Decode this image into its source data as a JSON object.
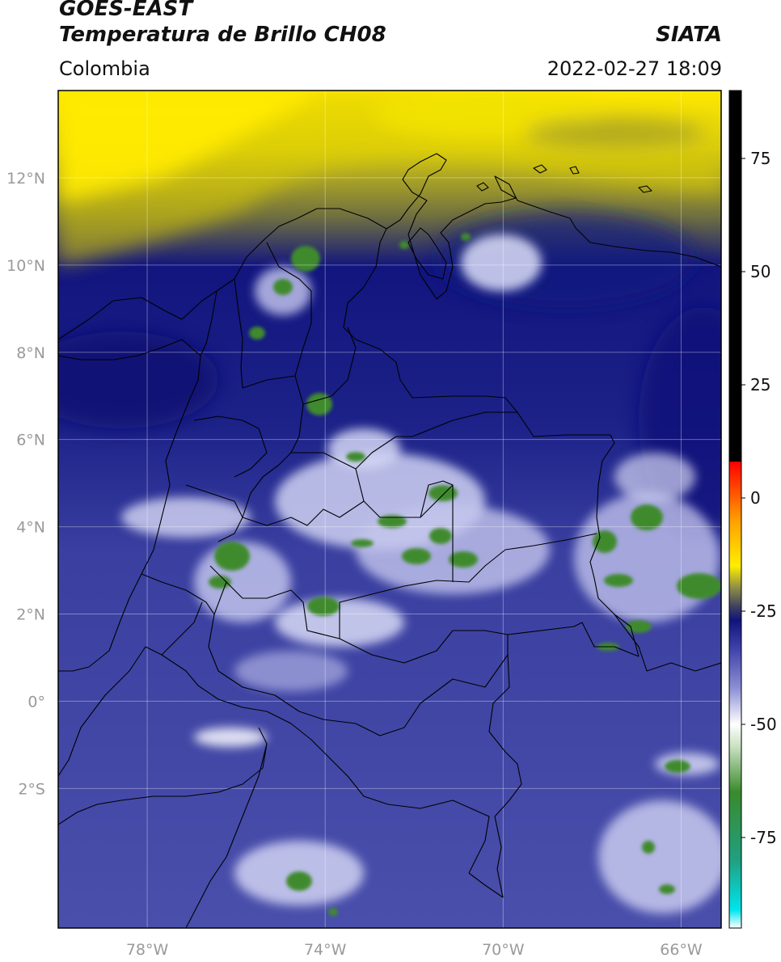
{
  "header": {
    "satellite": "GOES-EAST",
    "product": "Temperatura de Brillo CH08",
    "region": "Colombia",
    "source": "SIATA",
    "datetime": "2022-02-27 18:09"
  },
  "map": {
    "lon_range": [
      -80,
      -65.1
    ],
    "lat_range": [
      -5.2,
      14.0
    ],
    "lon_ticks": [
      {
        "value": -78,
        "label": "78°W"
      },
      {
        "value": -74,
        "label": "74°W"
      },
      {
        "value": -70,
        "label": "70°W"
      },
      {
        "value": -66,
        "label": "66°W"
      }
    ],
    "lat_ticks": [
      {
        "value": 12,
        "label": "12°N"
      },
      {
        "value": 10,
        "label": "10°N"
      },
      {
        "value": 8,
        "label": "8°N"
      },
      {
        "value": 6,
        "label": "6°N"
      },
      {
        "value": 4,
        "label": "4°N"
      },
      {
        "value": 2,
        "label": "2°N"
      },
      {
        "value": 0,
        "label": "0°"
      },
      {
        "value": -2,
        "label": "2°S"
      }
    ],
    "grid": true
  },
  "colorbar": {
    "range": [
      -95,
      90
    ],
    "ticks": [
      {
        "value": 75,
        "label": "75"
      },
      {
        "value": 50,
        "label": "50"
      },
      {
        "value": 25,
        "label": "25"
      },
      {
        "value": 0,
        "label": "0"
      },
      {
        "value": -25,
        "label": "-25"
      },
      {
        "value": -50,
        "label": "-50"
      },
      {
        "value": -75,
        "label": "-75"
      }
    ],
    "stops": [
      {
        "value": -95,
        "color": "#ffffff"
      },
      {
        "value": -91,
        "color": "#00e5ee"
      },
      {
        "value": -80,
        "color": "#20a080"
      },
      {
        "value": -65,
        "color": "#3a8a2c"
      },
      {
        "value": -55,
        "color": "#c8e0c0"
      },
      {
        "value": -50,
        "color": "#ffffff"
      },
      {
        "value": -42,
        "color": "#8c8fd4"
      },
      {
        "value": -33,
        "color": "#3c40a8"
      },
      {
        "value": -27,
        "color": "#10147a"
      },
      {
        "value": -24,
        "color": "#404060"
      },
      {
        "value": -20,
        "color": "#8a8a48"
      },
      {
        "value": -15,
        "color": "#ffee00"
      },
      {
        "value": -5,
        "color": "#ffa000"
      },
      {
        "value": 8,
        "color": "#ff0000"
      },
      {
        "value": 8.01,
        "color": "#000000"
      },
      {
        "value": 90,
        "color": "#000000"
      }
    ]
  }
}
